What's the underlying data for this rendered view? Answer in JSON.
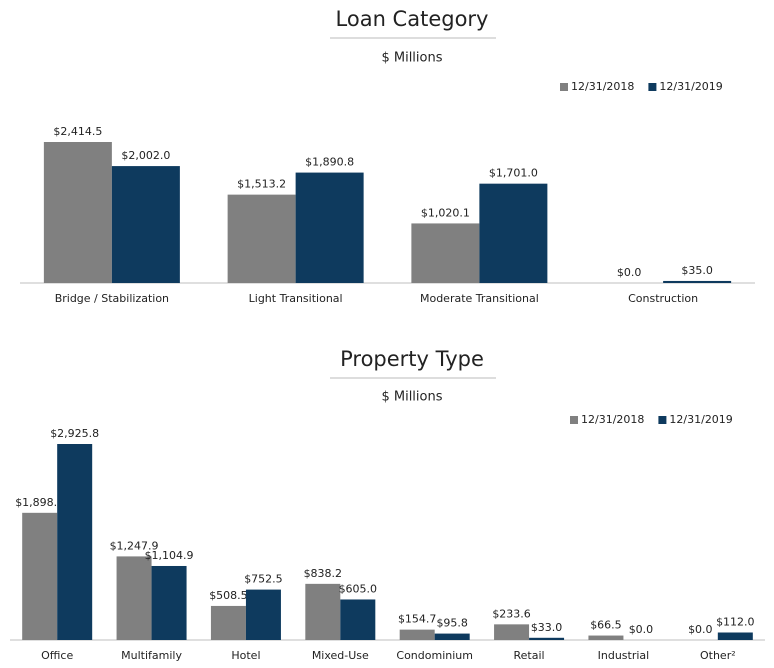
{
  "chart_data": [
    {
      "type": "bar",
      "title": "Loan Category",
      "subtitle": "$ Millions",
      "categories": [
        "Bridge / Stabilization",
        "Light Transitional",
        "Moderate Transitional",
        "Construction"
      ],
      "series": [
        {
          "name": "12/31/2018",
          "color": "#808080",
          "values": [
            2414.5,
            1513.2,
            1020.1,
            0.0
          ],
          "value_labels": [
            "$2,414.5",
            "$1,513.2",
            "$1,020.1",
            "$0.0"
          ]
        },
        {
          "name": "12/31/2019",
          "color": "#0e3a5e",
          "values": [
            2002.0,
            1890.8,
            1701.0,
            35.0
          ],
          "value_labels": [
            "$2,002.0",
            "$1,890.8",
            "$1,701.0",
            "$35.0"
          ]
        }
      ],
      "legend": "top-right"
    },
    {
      "type": "bar",
      "title": "Property Type",
      "subtitle": "$ Millions",
      "categories": [
        "Office",
        "Multifamily",
        "Hotel",
        "Mixed-Use",
        "Condominium",
        "Retail",
        "Industrial",
        "Other²"
      ],
      "series": [
        {
          "name": "12/31/2018",
          "color": "#808080",
          "values": [
            1898.5,
            1247.9,
            508.5,
            838.2,
            154.7,
            233.6,
            66.5,
            0.0
          ],
          "value_labels": [
            "$1,898.5",
            "$1,247.9",
            "$508.5",
            "$838.2",
            "$154.7",
            "$233.6",
            "$66.5",
            "$0.0"
          ]
        },
        {
          "name": "12/31/2019",
          "color": "#0e3a5e",
          "values": [
            2925.8,
            1104.9,
            752.5,
            605.0,
            95.8,
            33.0,
            0.0,
            112.0
          ],
          "value_labels": [
            "$2,925.8",
            "$1,104.9",
            "$752.5",
            "$605.0",
            "$95.8",
            "$33.0",
            "$0.0",
            "$112.0"
          ]
        }
      ],
      "legend": "top-right"
    }
  ]
}
